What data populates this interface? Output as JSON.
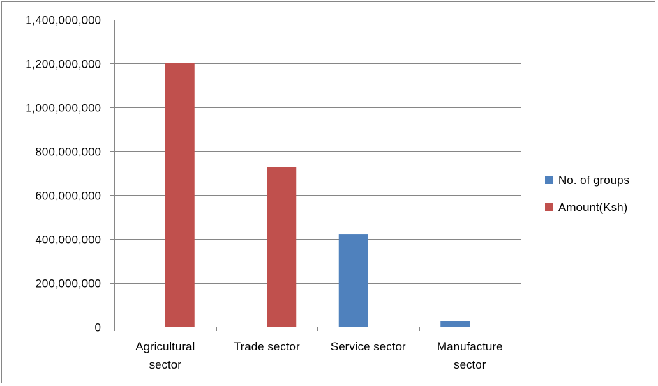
{
  "chart_data": {
    "type": "bar",
    "categories": [
      [
        "Agricultural",
        "sector"
      ],
      [
        "Trade sector"
      ],
      [
        "Service sector"
      ],
      [
        "Manufacture",
        "sector"
      ]
    ],
    "series": [
      {
        "name": "No. of groups",
        "color": "#4F81BD",
        "values": [
          0,
          0,
          422000000,
          28000000
        ]
      },
      {
        "name": "Amount(Ksh)",
        "color": "#C0504D",
        "values": [
          1200000000,
          727000000,
          0,
          0
        ]
      }
    ],
    "y_ticks": [
      "0",
      "200,000,000",
      "400,000,000",
      "600,000,000",
      "800,000,000",
      "1,000,000,000",
      "1,200,000,000",
      "1,400,000,000"
    ],
    "ylim": [
      0,
      1400000000
    ],
    "grid": true,
    "legend_position": "right"
  }
}
